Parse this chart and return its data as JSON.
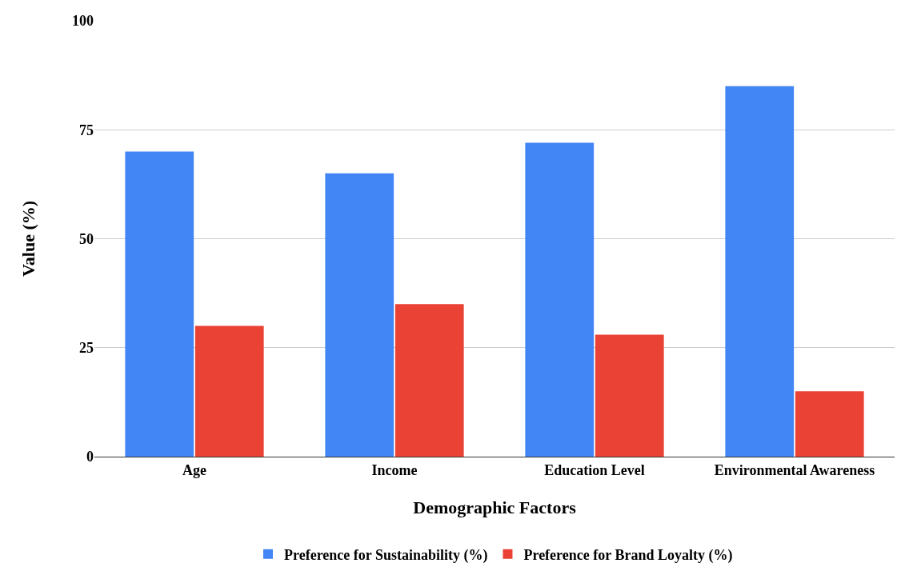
{
  "chart_data": {
    "type": "bar",
    "xlabel": "Demographic Factors",
    "ylabel": "Value (%)",
    "categories": [
      "Age",
      "Income",
      "Education Level",
      "Environmental Awareness"
    ],
    "series": [
      {
        "name": "Preference for Sustainability (%)",
        "color": "#4285f4",
        "values": [
          70,
          65,
          72,
          85
        ]
      },
      {
        "name": "Preference for Brand Loyalty (%)",
        "color": "#ea4335",
        "values": [
          30,
          35,
          28,
          15
        ]
      }
    ],
    "ylim": [
      0,
      100
    ],
    "yticks": [
      0,
      25,
      50,
      75,
      100
    ],
    "grid": "y",
    "legend": "bottom"
  }
}
